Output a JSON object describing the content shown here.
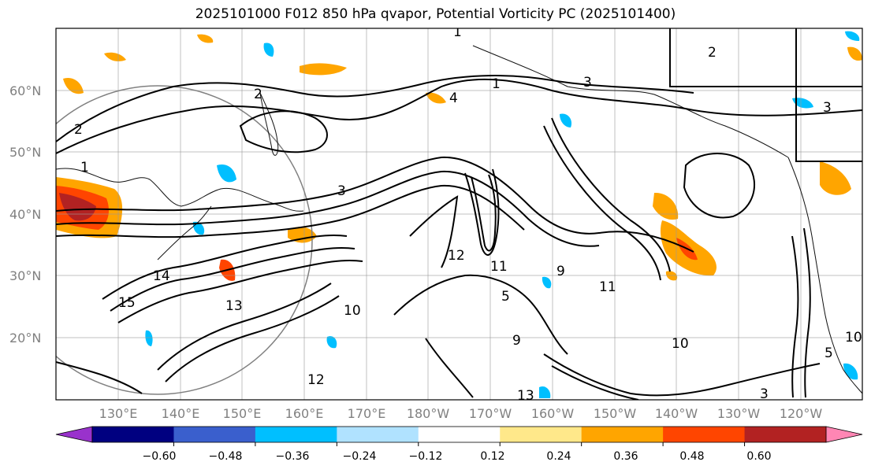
{
  "title": "2025101000 F012 850 hPa qvapor, Potential Vorticity PC (2025101400)",
  "map": {
    "lat_labels": [
      "60°N",
      "50°N",
      "40°N",
      "30°N",
      "20°N"
    ],
    "lon_labels": [
      "130°E",
      "140°E",
      "150°E",
      "160°E",
      "170°E",
      "180°W",
      "170°W",
      "160°W",
      "150°W",
      "140°W",
      "130°W",
      "120°W"
    ],
    "contour_labels": [
      "1",
      "2",
      "3",
      "1",
      "2",
      "3",
      "4",
      "13",
      "14",
      "15",
      "12",
      "11",
      "10",
      "9",
      "5",
      "13",
      "12",
      "10",
      "11",
      "9",
      "3",
      "5",
      "10",
      "3",
      "2",
      "1"
    ]
  },
  "colorbar": {
    "tick_labels": [
      "−0.60",
      "−0.48",
      "−0.36",
      "−0.24",
      "−0.12",
      "0.12",
      "0.24",
      "0.36",
      "0.48",
      "0.60"
    ],
    "colors": [
      "#9932cc",
      "#000080",
      "#3a5fcd",
      "#00bfff",
      "#b0e2ff",
      "#ffffff",
      "#ffe88a",
      "#ffa500",
      "#ff4500",
      "#b22222",
      "#ff86b4"
    ]
  },
  "field_colors": {
    "positive_low": "#ffa500",
    "positive_mid": "#ff4500",
    "positive_high": "#b22222",
    "negative_low": "#00bfff",
    "negative_mid": "#3a5fcd"
  }
}
